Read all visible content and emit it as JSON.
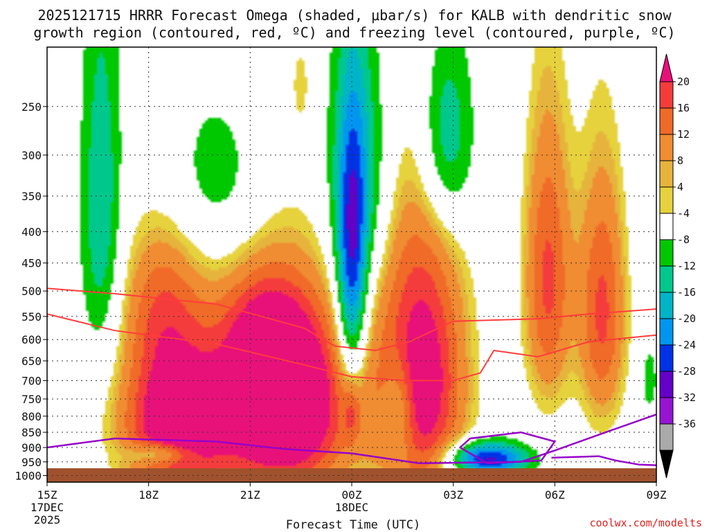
{
  "chart_data": {
    "type": "contour",
    "title_line1": "2025121715 HRRR Forecast Omega (shaded, μbar/s) for KALB with dendritic snow",
    "title_line2": "growth region (contoured, red, ºC) and freezing level (contoured, purple, ºC)",
    "xlabel": "Forecast Time (UTC)",
    "credit": "coolwx.com/modelts",
    "x_ticks": [
      {
        "t": 0,
        "label": "15Z",
        "sub1": "17DEC",
        "sub2": "2025"
      },
      {
        "t": 3,
        "label": "18Z"
      },
      {
        "t": 6,
        "label": "21Z"
      },
      {
        "t": 9,
        "label": "00Z",
        "sub1": "18DEC"
      },
      {
        "t": 12,
        "label": "03Z"
      },
      {
        "t": 15,
        "label": "06Z"
      },
      {
        "t": 18,
        "label": "09Z"
      }
    ],
    "xlim": [
      0,
      18
    ],
    "y_ticks": [
      250,
      300,
      350,
      400,
      450,
      500,
      550,
      600,
      650,
      700,
      750,
      800,
      850,
      900,
      950,
      1000
    ],
    "ylim_hPa": [
      200,
      1025
    ],
    "colorbar": {
      "levels": [
        20,
        16,
        12,
        8,
        4,
        -4,
        -8,
        -12,
        -16,
        -20,
        -24,
        -28,
        -32,
        -36
      ],
      "colors": [
        "#e8117a",
        "#f53c3c",
        "#f06a28",
        "#f08c32",
        "#e6b43c",
        "#e6d23c",
        "#ffffff",
        "#00c800",
        "#00c88c",
        "#00b4c8",
        "#0096f0",
        "#0032e6",
        "#6400c8",
        "#9614d2",
        "#aaaaaa",
        "#000000"
      ]
    },
    "omega_blobs": [
      {
        "t": 1.6,
        "p": 370,
        "dt": 0.6,
        "dp": 260,
        "v": -12
      },
      {
        "t": 3.8,
        "p": 820,
        "dt": 1.6,
        "dp": 230,
        "v": 28
      },
      {
        "t": 3.4,
        "p": 520,
        "dt": 1.2,
        "dp": 160,
        "v": 12
      },
      {
        "t": 7.0,
        "p": 760,
        "dt": 1.9,
        "dp": 280,
        "v": 34
      },
      {
        "t": 6.4,
        "p": 580,
        "dt": 1.2,
        "dp": 120,
        "v": 10
      },
      {
        "t": 9.0,
        "p": 480,
        "dt": 0.45,
        "dp": 230,
        "v": -22
      },
      {
        "t": 9.2,
        "p": 320,
        "dt": 0.9,
        "dp": 170,
        "v": -13
      },
      {
        "t": 5.0,
        "p": 330,
        "dt": 1.5,
        "dp": 110,
        "v": -7
      },
      {
        "t": 9.0,
        "p": 790,
        "dt": 0.25,
        "dp": 90,
        "v": 7
      },
      {
        "t": 11.0,
        "p": 700,
        "dt": 1.3,
        "dp": 360,
        "v": 26
      },
      {
        "t": 10.4,
        "p": 780,
        "dt": 0.5,
        "dp": 160,
        "v": -12
      },
      {
        "t": 11.8,
        "p": 280,
        "dt": 0.8,
        "dp": 110,
        "v": -14
      },
      {
        "t": 13.0,
        "p": 940,
        "dt": 1.2,
        "dp": 60,
        "v": -26
      },
      {
        "t": 14.8,
        "p": 480,
        "dt": 0.7,
        "dp": 260,
        "v": 17
      },
      {
        "t": 16.4,
        "p": 540,
        "dt": 0.7,
        "dp": 260,
        "v": 17
      },
      {
        "t": 3.4,
        "p": 920,
        "dt": 0.9,
        "dp": 40,
        "v": -13
      },
      {
        "t": 17.8,
        "p": 700,
        "dt": 0.2,
        "dp": 80,
        "v": -8
      },
      {
        "t": 7.5,
        "p": 230,
        "dt": 0.3,
        "dp": 40,
        "v": 5
      }
    ],
    "dendritic_contours": [
      {
        "name": "top",
        "points": [
          [
            0,
            495
          ],
          [
            2,
            505
          ],
          [
            5,
            525
          ],
          [
            7.6,
            575
          ],
          [
            8.5,
            615
          ],
          [
            9.7,
            625
          ],
          [
            10.7,
            605
          ],
          [
            12,
            560
          ],
          [
            14.5,
            555
          ],
          [
            16,
            545
          ],
          [
            18,
            535
          ]
        ]
      },
      {
        "name": "bottom",
        "points": [
          [
            0,
            545
          ],
          [
            2,
            580
          ],
          [
            5,
            610
          ],
          [
            7.6,
            660
          ],
          [
            9,
            690
          ],
          [
            10.6,
            700
          ],
          [
            12,
            700
          ],
          [
            12.8,
            680
          ],
          [
            13.2,
            625
          ],
          [
            14.5,
            640
          ],
          [
            16,
            605
          ],
          [
            18,
            590
          ]
        ]
      }
    ],
    "freezing_contours": [
      {
        "name": "main",
        "points": [
          [
            0,
            900
          ],
          [
            2,
            870
          ],
          [
            5,
            880
          ],
          [
            7,
            905
          ],
          [
            9,
            920
          ],
          [
            11,
            955
          ],
          [
            14,
            950
          ],
          [
            15,
            910
          ],
          [
            16.5,
            850
          ],
          [
            18,
            795
          ]
        ]
      },
      {
        "name": "loop-left",
        "points": [
          [
            12.2,
            900
          ],
          [
            12.5,
            870
          ],
          [
            14,
            850
          ],
          [
            15,
            880
          ],
          [
            14.6,
            945
          ],
          [
            13,
            955
          ],
          [
            12.2,
            900
          ]
        ]
      },
      {
        "name": "loop-right",
        "points": [
          [
            14.9,
            935
          ],
          [
            16.3,
            930
          ],
          [
            16.8,
            945
          ],
          [
            17.5,
            960
          ],
          [
            18,
            962
          ]
        ]
      }
    ]
  }
}
